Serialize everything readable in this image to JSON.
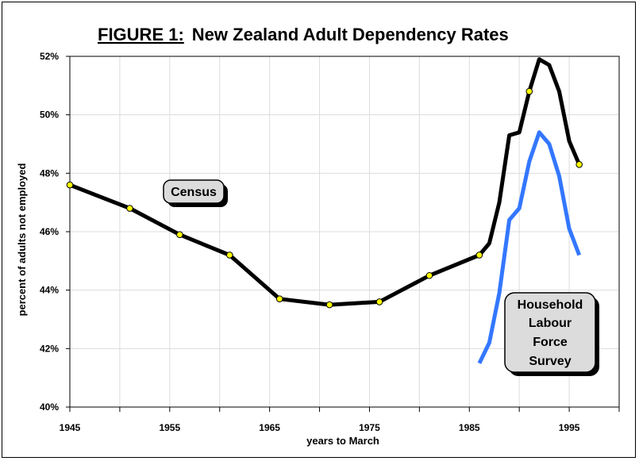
{
  "chart_data": {
    "type": "line",
    "title_prefix": "FIGURE 1:",
    "title_main": "New Zealand Adult Dependency Rates",
    "xlabel": "years to March",
    "ylabel": "percent of adults not employed",
    "xlim": [
      1945,
      2000
    ],
    "ylim": [
      40,
      52
    ],
    "x_ticks": [
      1945,
      1955,
      1965,
      1975,
      1985,
      1995
    ],
    "y_ticks": [
      40,
      42,
      44,
      46,
      48,
      50,
      52
    ],
    "y_tick_labels": [
      "40%",
      "42%",
      "44%",
      "46%",
      "48%",
      "50%",
      "52%"
    ],
    "grid": true,
    "series": [
      {
        "name": "Census",
        "color": "#000000",
        "marker_color": "#ffff00",
        "points": [
          [
            1945,
            47.6
          ],
          [
            1948,
            47.2
          ],
          [
            1951,
            46.8
          ],
          [
            1956,
            45.9
          ],
          [
            1961,
            45.2
          ],
          [
            1966,
            43.7
          ],
          [
            1971,
            43.5
          ],
          [
            1976,
            43.6
          ],
          [
            1981,
            44.5
          ],
          [
            1986,
            45.2
          ],
          [
            1987,
            45.6
          ],
          [
            1988,
            47.0
          ],
          [
            1989,
            49.3
          ],
          [
            1990,
            49.4
          ],
          [
            1991,
            50.8
          ],
          [
            1992,
            51.9
          ],
          [
            1993,
            51.7
          ],
          [
            1994,
            50.8
          ],
          [
            1995,
            49.1
          ],
          [
            1996,
            48.3
          ]
        ],
        "marked": [
          [
            1945,
            47.6
          ],
          [
            1951,
            46.8
          ],
          [
            1956,
            45.9
          ],
          [
            1961,
            45.2
          ],
          [
            1966,
            43.7
          ],
          [
            1971,
            43.5
          ],
          [
            1976,
            43.6
          ],
          [
            1981,
            44.5
          ],
          [
            1986,
            45.2
          ],
          [
            1991,
            50.8
          ],
          [
            1996,
            48.3
          ]
        ]
      },
      {
        "name": "Household Labour Force Survey",
        "color": "#3377ff",
        "points": [
          [
            1986,
            41.5
          ],
          [
            1987,
            42.2
          ],
          [
            1988,
            43.9
          ],
          [
            1989,
            46.4
          ],
          [
            1990,
            46.8
          ],
          [
            1991,
            48.4
          ],
          [
            1992,
            49.4
          ],
          [
            1993,
            49.0
          ],
          [
            1994,
            47.9
          ],
          [
            1995,
            46.1
          ],
          [
            1996,
            45.2
          ]
        ]
      }
    ],
    "callouts": [
      {
        "id": "census",
        "lines": [
          "Census"
        ]
      },
      {
        "id": "hlfs",
        "lines": [
          "Household",
          "Labour",
          "Force",
          "Survey"
        ]
      }
    ]
  }
}
